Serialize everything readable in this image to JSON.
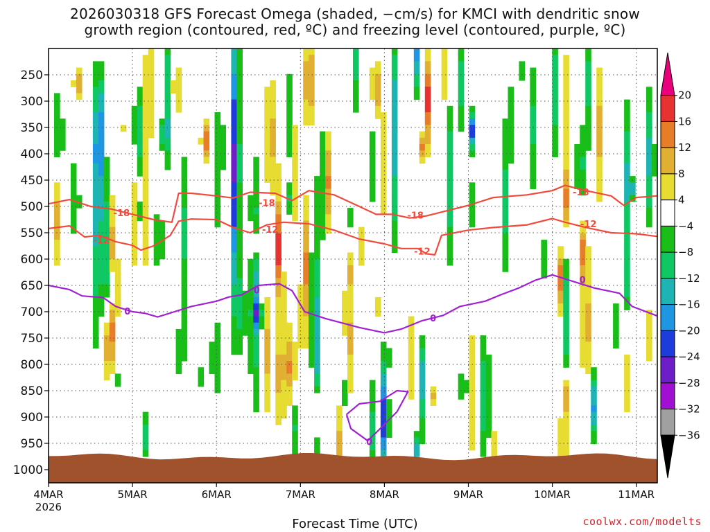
{
  "chart_data": {
    "type": "heatmap",
    "title_lines": [
      "2026030318 GFS Forecast Omega (shaded, −cm/s) for KMCI with dendritic snow",
      "growth region (contoured, red, ºC) and freezing level (contoured, purple, ºC)"
    ],
    "xlabel": "Forecast Time (UTC)",
    "ylabel": "",
    "credit": "coolwx.com/modelts",
    "x_ticks": [
      {
        "t": 0.5,
        "label": "4MAR",
        "sub": "2026"
      },
      {
        "t": 1.5,
        "label": "5MAR"
      },
      {
        "t": 2.5,
        "label": "6MAR"
      },
      {
        "t": 3.5,
        "label": "7MAR"
      },
      {
        "t": 4.5,
        "label": "8MAR"
      },
      {
        "t": 5.5,
        "label": "9MAR"
      },
      {
        "t": 6.5,
        "label": "10MAR"
      },
      {
        "t": 7.5,
        "label": "11MAR"
      }
    ],
    "x_range_days": [
      0.5,
      7.75
    ],
    "y_levels": [
      250,
      300,
      350,
      400,
      450,
      500,
      550,
      600,
      650,
      700,
      750,
      800,
      850,
      900,
      950,
      1000
    ],
    "y_range_hpa": [
      200,
      1025
    ],
    "colorbar": {
      "labels": [
        "20",
        "16",
        "12",
        "8",
        "4",
        "−4",
        "−8",
        "−12",
        "−16",
        "−20",
        "−24",
        "−28",
        "−32",
        "−36"
      ],
      "colors": [
        "#e8007c",
        "#e83232",
        "#e87d28",
        "#e1af32",
        "#e6dc32",
        "#ffffff",
        "#19be19",
        "#0fc864",
        "#1eb4b4",
        "#1e96e1",
        "#1e3cdc",
        "#6e1ec8",
        "#a00fd2",
        "#a0a0a0",
        "#000000"
      ]
    },
    "surface_color": "#a0522d",
    "contours": [
      {
        "name": "dendritic-top",
        "label": "-18",
        "color": "#f04a3c",
        "points": [
          [
            0.5,
            495
          ],
          [
            0.75,
            487
          ],
          [
            1.0,
            500
          ],
          [
            1.25,
            505
          ],
          [
            1.5,
            515
          ],
          [
            1.75,
            525
          ],
          [
            1.97,
            530
          ],
          [
            2.05,
            475
          ],
          [
            2.2,
            475
          ],
          [
            2.5,
            480
          ],
          [
            2.7,
            484
          ],
          [
            2.9,
            473
          ],
          [
            3.2,
            475
          ],
          [
            3.4,
            489
          ],
          [
            3.6,
            470
          ],
          [
            3.9,
            478
          ],
          [
            4.2,
            500
          ],
          [
            4.4,
            515
          ],
          [
            4.6,
            515
          ],
          [
            4.8,
            522
          ],
          [
            5.0,
            518
          ],
          [
            5.2,
            510
          ],
          [
            5.5,
            498
          ],
          [
            5.8,
            483
          ],
          [
            6.2,
            478
          ],
          [
            6.5,
            470
          ],
          [
            6.65,
            460
          ],
          [
            6.9,
            470
          ],
          [
            7.2,
            480
          ],
          [
            7.35,
            498
          ],
          [
            7.5,
            483
          ],
          [
            7.75,
            480
          ]
        ],
        "label_positions": [
          [
            1.37,
            513
          ],
          [
            3.1,
            494
          ],
          [
            4.87,
            518
          ],
          [
            6.84,
            474
          ]
        ]
      },
      {
        "name": "dendritic-bottom",
        "label": "-12",
        "color": "#f04a3c",
        "points": [
          [
            0.5,
            542
          ],
          [
            0.75,
            537
          ],
          [
            0.93,
            558
          ],
          [
            1.1,
            555
          ],
          [
            1.3,
            567
          ],
          [
            1.5,
            574
          ],
          [
            1.6,
            583
          ],
          [
            1.75,
            575
          ],
          [
            1.95,
            555
          ],
          [
            2.05,
            528
          ],
          [
            2.2,
            524
          ],
          [
            2.5,
            525
          ],
          [
            2.7,
            540
          ],
          [
            2.9,
            550
          ],
          [
            3.1,
            535
          ],
          [
            3.3,
            530
          ],
          [
            3.6,
            533
          ],
          [
            3.9,
            545
          ],
          [
            4.2,
            562
          ],
          [
            4.5,
            571
          ],
          [
            4.7,
            580
          ],
          [
            4.9,
            580
          ],
          [
            5.0,
            590
          ],
          [
            5.1,
            592
          ],
          [
            5.18,
            555
          ],
          [
            5.5,
            545
          ],
          [
            5.8,
            540
          ],
          [
            6.2,
            535
          ],
          [
            6.5,
            523
          ],
          [
            6.65,
            530
          ],
          [
            6.9,
            540
          ],
          [
            7.2,
            550
          ],
          [
            7.5,
            552
          ],
          [
            7.75,
            557
          ]
        ],
        "label_positions": [
          [
            1.13,
            565
          ],
          [
            3.14,
            545
          ],
          [
            4.95,
            586
          ],
          [
            6.93,
            534
          ]
        ]
      },
      {
        "name": "freezing-level",
        "label": "0",
        "color": "#a020d2",
        "points": [
          [
            0.5,
            650
          ],
          [
            0.75,
            658
          ],
          [
            0.9,
            670
          ],
          [
            1.15,
            673
          ],
          [
            1.3,
            690
          ],
          [
            1.5,
            700
          ],
          [
            1.65,
            703
          ],
          [
            1.8,
            710
          ],
          [
            2.0,
            700
          ],
          [
            2.2,
            690
          ],
          [
            2.5,
            680
          ],
          [
            2.65,
            672
          ],
          [
            2.8,
            668
          ],
          [
            3.0,
            650
          ],
          [
            3.25,
            647
          ],
          [
            3.4,
            660
          ],
          [
            3.55,
            700
          ],
          [
            3.8,
            713
          ],
          [
            4.2,
            730
          ],
          [
            4.5,
            740
          ],
          [
            4.7,
            733
          ],
          [
            4.95,
            717
          ],
          [
            5.2,
            707
          ],
          [
            5.4,
            690
          ],
          [
            5.7,
            680
          ],
          [
            5.9,
            667
          ],
          [
            6.1,
            655
          ],
          [
            6.3,
            640
          ],
          [
            6.5,
            630
          ],
          [
            6.7,
            640
          ],
          [
            7.0,
            655
          ],
          [
            7.3,
            665
          ],
          [
            7.45,
            690
          ],
          [
            7.75,
            708
          ]
        ],
        "label_positions": [
          [
            1.44,
            700
          ],
          [
            2.98,
            660
          ],
          [
            5.08,
            713
          ],
          [
            6.86,
            640
          ]
        ]
      },
      {
        "name": "freezing-loop",
        "label": "0",
        "color": "#a020d2",
        "points": [
          [
            4.05,
            895
          ],
          [
            4.2,
            875
          ],
          [
            4.45,
            870
          ],
          [
            4.65,
            850
          ],
          [
            4.78,
            852
          ],
          [
            4.65,
            890
          ],
          [
            4.4,
            930
          ],
          [
            4.3,
            945
          ],
          [
            4.1,
            922
          ],
          [
            4.05,
            895
          ]
        ],
        "label_positions": [
          [
            4.32,
            948
          ]
        ]
      }
    ]
  }
}
